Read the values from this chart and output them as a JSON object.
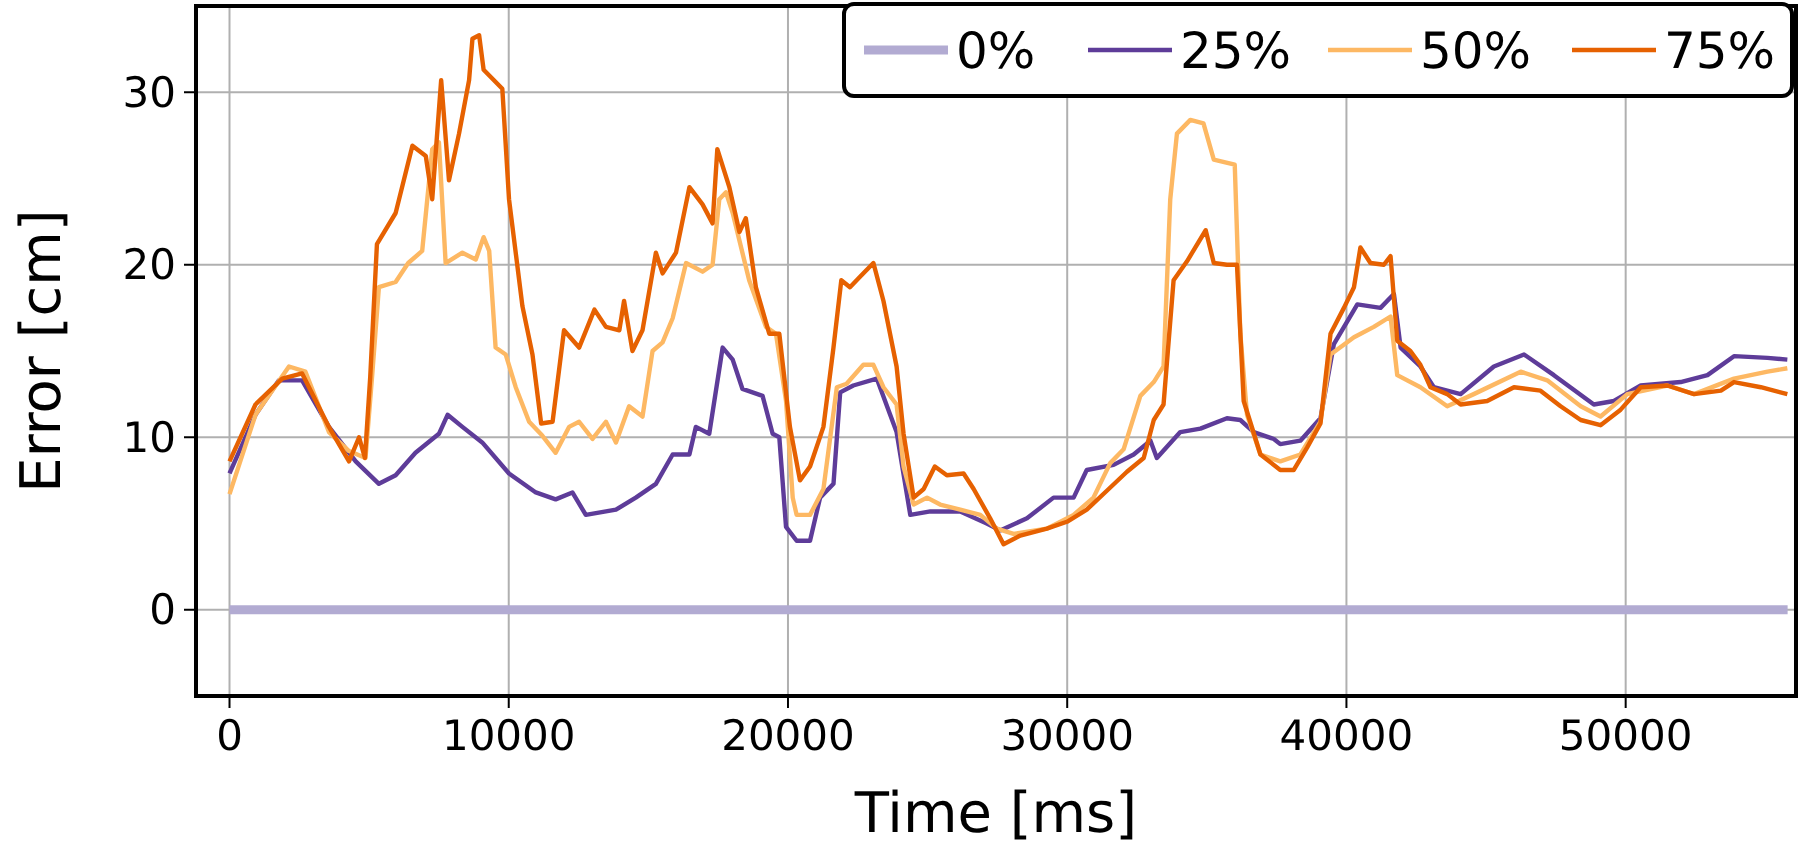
{
  "chart_data": {
    "type": "line",
    "xlabel": "Time [ms]",
    "ylabel": "Error [cm]",
    "xlim": [
      -1200,
      56100
    ],
    "ylim": [
      -5,
      35
    ],
    "xticks": [
      0,
      10000,
      20000,
      30000,
      40000,
      50000
    ],
    "yticks": [
      0,
      10,
      20,
      30
    ],
    "grid": true,
    "legend": "top right",
    "line_style": "solid",
    "marker": "none",
    "series": [
      {
        "name": "0%",
        "color": "#b2abd2",
        "x": [
          0,
          55800
        ],
        "values": [
          0,
          0
        ]
      },
      {
        "name": "25%",
        "color": "#5e3c99",
        "x": [
          0,
          930,
          1770,
          2600,
          3560,
          4520,
          5350,
          5950,
          6660,
          7500,
          7810,
          8340,
          9050,
          10010,
          10970,
          11680,
          12280,
          12760,
          13840,
          14550,
          15270,
          15870,
          16470,
          16700,
          17180,
          17660,
          18020,
          18370,
          19090,
          19450,
          19690,
          19930,
          20310,
          20790,
          21150,
          21630,
          21870,
          22340,
          23180,
          23660,
          23890,
          24380,
          25100,
          26170,
          27120,
          27600,
          28560,
          29510,
          30230,
          30700,
          31660,
          32380,
          32980,
          33210,
          34050,
          34770,
          35720,
          36200,
          36680,
          37400,
          37630,
          38350,
          39070,
          39550,
          40390,
          41220,
          41700,
          41940,
          42650,
          43130,
          44090,
          45280,
          46360,
          47430,
          48860,
          49580,
          50540,
          51970,
          52930,
          53880,
          55080,
          55790
        ],
        "values": [
          7.9,
          11.3,
          13.3,
          13.3,
          10.6,
          8.6,
          7.3,
          7.8,
          9.1,
          10.2,
          11.3,
          10.6,
          9.7,
          7.9,
          6.8,
          6.4,
          6.8,
          5.5,
          5.8,
          6.5,
          7.3,
          9.0,
          9.0,
          10.6,
          10.2,
          15.2,
          14.5,
          12.8,
          12.4,
          10.2,
          10.0,
          4.8,
          4.0,
          4.0,
          6.5,
          7.3,
          12.6,
          13.0,
          13.4,
          11.3,
          10.3,
          5.5,
          5.7,
          5.7,
          5.0,
          4.6,
          5.3,
          6.5,
          6.5,
          8.1,
          8.4,
          9.0,
          9.8,
          8.8,
          10.3,
          10.5,
          11.1,
          11.0,
          10.3,
          9.9,
          9.6,
          9.8,
          11.1,
          15.4,
          17.7,
          17.5,
          18.3,
          15.2,
          14.1,
          12.9,
          12.5,
          14.1,
          14.8,
          13.6,
          11.9,
          12.1,
          13.0,
          13.2,
          13.6,
          14.7,
          14.6,
          14.5
        ]
      },
      {
        "name": "50%",
        "color": "#fdb863",
        "x": [
          0,
          930,
          2130,
          2720,
          3560,
          4280,
          4870,
          5110,
          5350,
          5950,
          6400,
          6900,
          7260,
          7500,
          7740,
          8340,
          8820,
          9100,
          9300,
          9530,
          9890,
          10250,
          10730,
          11200,
          11680,
          12160,
          12520,
          13000,
          13480,
          13840,
          14310,
          14790,
          15150,
          15510,
          15870,
          16350,
          16940,
          17300,
          17540,
          17780,
          18020,
          18610,
          19210,
          19570,
          19930,
          20170,
          20310,
          20790,
          21270,
          21750,
          22100,
          22700,
          23060,
          23420,
          23890,
          24140,
          24500,
          24980,
          25450,
          26170,
          26890,
          27480,
          28080,
          29270,
          30230,
          30940,
          31540,
          32020,
          32620,
          33100,
          33450,
          33690,
          33930,
          34410,
          34880,
          35250,
          36000,
          36200,
          36440,
          36920,
          37630,
          38350,
          39070,
          39430,
          40270,
          40980,
          41580,
          41820,
          42650,
          43610,
          44560,
          46240,
          47190,
          48390,
          49100,
          50060,
          51490,
          52450,
          53880,
          55080,
          55790
        ],
        "values": [
          6.7,
          11.3,
          14.1,
          13.8,
          10.3,
          9.2,
          8.8,
          13.6,
          18.7,
          19.0,
          20.1,
          20.8,
          26.7,
          27.1,
          20.1,
          20.7,
          20.3,
          21.6,
          20.8,
          15.2,
          14.8,
          12.9,
          10.9,
          10.1,
          9.1,
          10.6,
          10.9,
          9.9,
          10.9,
          9.7,
          11.8,
          11.2,
          15.0,
          15.5,
          16.9,
          20.1,
          19.6,
          20.0,
          23.8,
          24.2,
          23.0,
          19.1,
          16.4,
          16.0,
          12.1,
          6.5,
          5.5,
          5.5,
          7.0,
          12.9,
          13.1,
          14.2,
          14.2,
          12.9,
          11.9,
          8.3,
          6.1,
          6.5,
          6.1,
          5.8,
          5.5,
          4.7,
          4.4,
          4.7,
          5.5,
          6.5,
          8.5,
          9.3,
          12.4,
          13.2,
          14.1,
          23.8,
          27.6,
          28.4,
          28.2,
          26.1,
          25.8,
          16.0,
          11.3,
          9.0,
          8.6,
          9.0,
          10.9,
          14.8,
          15.8,
          16.4,
          17.0,
          13.6,
          12.9,
          11.8,
          12.5,
          13.8,
          13.3,
          11.8,
          11.2,
          12.5,
          13.0,
          12.5,
          13.4,
          13.8,
          14.0
        ]
      },
      {
        "name": "75%",
        "color": "#e66101",
        "x": [
          0,
          930,
          1890,
          2600,
          3560,
          4280,
          4640,
          4850,
          5040,
          5280,
          5950,
          6550,
          7030,
          7260,
          7580,
          7860,
          8220,
          8580,
          8700,
          8940,
          9100,
          9770,
          10010,
          10490,
          10850,
          11160,
          11570,
          11980,
          12520,
          13070,
          13480,
          13960,
          14130,
          14430,
          14790,
          15270,
          15510,
          15990,
          16470,
          16940,
          17300,
          17470,
          17900,
          18260,
          18490,
          18850,
          19330,
          19690,
          20070,
          20430,
          20790,
          21270,
          21630,
          21910,
          22220,
          22580,
          23060,
          23420,
          23890,
          24140,
          24500,
          24860,
          25260,
          25690,
          26290,
          26650,
          27240,
          27720,
          28320,
          29270,
          29990,
          30700,
          31420,
          32140,
          32740,
          33100,
          33450,
          33810,
          34290,
          34960,
          35250,
          35720,
          36080,
          36320,
          36920,
          37630,
          38110,
          38590,
          39070,
          39430,
          39910,
          40270,
          40500,
          40860,
          41340,
          41580,
          41820,
          42290,
          42650,
          43010,
          43610,
          44090,
          45040,
          46000,
          46950,
          47670,
          48390,
          49100,
          49820,
          50540,
          51490,
          52450,
          53410,
          53880,
          54840,
          55790
        ],
        "values": [
          8.6,
          11.9,
          13.4,
          13.7,
          10.6,
          8.6,
          10.0,
          8.8,
          13.5,
          21.2,
          23.0,
          26.9,
          26.3,
          23.8,
          30.7,
          24.9,
          27.6,
          30.7,
          33.1,
          33.3,
          31.3,
          30.2,
          23.8,
          17.6,
          14.8,
          10.8,
          10.9,
          16.2,
          15.2,
          17.4,
          16.4,
          16.2,
          17.9,
          15.0,
          16.2,
          20.7,
          19.5,
          20.7,
          24.5,
          23.5,
          22.4,
          26.7,
          24.5,
          21.9,
          22.7,
          18.7,
          16.0,
          16.0,
          10.6,
          7.5,
          8.3,
          10.6,
          15.2,
          19.1,
          18.7,
          19.3,
          20.1,
          17.9,
          14.1,
          10.2,
          6.5,
          7.0,
          8.3,
          7.8,
          7.9,
          7.0,
          5.3,
          3.8,
          4.3,
          4.7,
          5.1,
          5.8,
          6.9,
          8.0,
          8.8,
          11.0,
          11.9,
          19.1,
          20.2,
          22.0,
          20.1,
          20.0,
          20.0,
          12.1,
          9.0,
          8.1,
          8.1,
          9.4,
          10.8,
          16.0,
          17.5,
          18.7,
          21.0,
          20.1,
          20.0,
          20.5,
          15.6,
          15.0,
          14.2,
          12.9,
          12.5,
          11.9,
          12.1,
          12.9,
          12.7,
          11.8,
          11.0,
          10.7,
          11.6,
          12.9,
          13.0,
          12.5,
          12.7,
          13.2,
          12.9,
          12.5
        ]
      }
    ]
  }
}
